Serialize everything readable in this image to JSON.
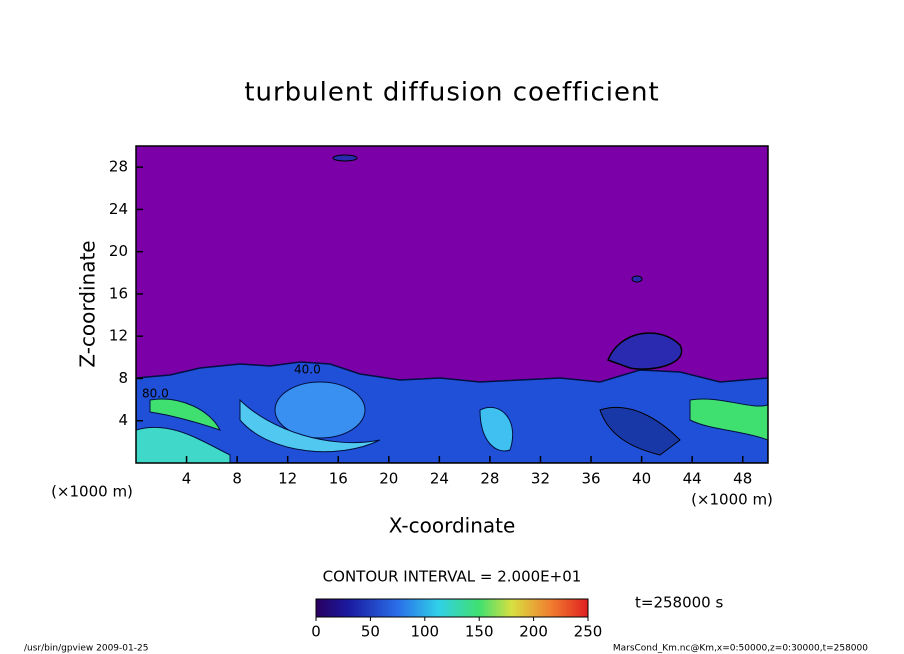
{
  "chart_data": {
    "type": "contour",
    "title": "turbulent diffusion coefficient",
    "x_label": "X-coordinate",
    "y_label": "Z-coordinate",
    "x_unit": "(×1000 m)",
    "y_unit": "(×1000 m)",
    "xlim": [
      0,
      50
    ],
    "ylim": [
      0,
      30
    ],
    "xticks": [
      4,
      8,
      12,
      16,
      20,
      24,
      28,
      32,
      36,
      40,
      44,
      48
    ],
    "yticks": [
      4,
      8,
      12,
      16,
      20,
      24,
      28
    ],
    "contour_labels": [
      "40.0",
      "80.0"
    ],
    "contour_interval_text": "CONTOUR INTERVAL = 2.000E+01",
    "clim": [
      0,
      250
    ],
    "colorbar_ticks": [
      0,
      50,
      100,
      150,
      200,
      250
    ],
    "time_label": "t=258000 s",
    "footer_left": "/usr/bin/gpview  2009-01-25",
    "footer_right": "MarsCond_Km.nc@Km,x=0:50000,z=0:30000,t=258000"
  }
}
